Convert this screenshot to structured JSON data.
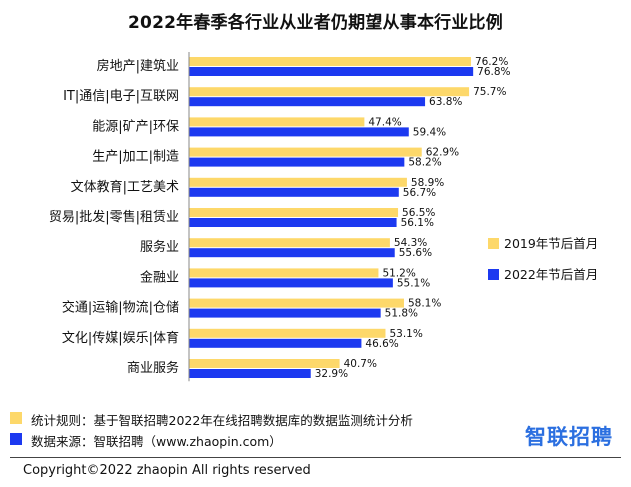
{
  "chart_data": {
    "type": "bar",
    "orientation": "horizontal",
    "title": "2022年春季各行业从业者仍期望从事本行业比例",
    "categories": [
      "房地产|建筑业",
      "IT|通信|电子|互联网",
      "能源|矿产|环保",
      "生产|加工|制造",
      "文体教育|工艺美术",
      "贸易|批发|零售|租赁业",
      "服务业",
      "金融业",
      "交通|运输|物流|仓储",
      "文化|传媒|娱乐|体育",
      "商业服务"
    ],
    "series": [
      {
        "name": "2019年节后首月",
        "color": "#FDD86A",
        "values": [
          76.2,
          75.7,
          47.4,
          62.9,
          58.9,
          56.5,
          54.3,
          51.2,
          58.1,
          53.1,
          40.7
        ]
      },
      {
        "name": "2022年节后首月",
        "color": "#1C39F0",
        "values": [
          76.8,
          63.8,
          59.4,
          58.2,
          56.7,
          56.1,
          55.6,
          55.1,
          51.8,
          46.6,
          32.9
        ]
      }
    ],
    "value_suffix": "%",
    "xlim": [
      0,
      80
    ],
    "legend_position": "right",
    "grid": false
  },
  "footnotes": {
    "rule": "统计规则：基于智联招聘2022年在线招聘数据库的数据监测统计分析",
    "source": "数据来源：智联招聘（www.zhaopin.com）",
    "rule_color": "#FDD86A",
    "source_color": "#1C39F0"
  },
  "brand": "智联招聘",
  "copyright": "Copyright©2022 zhaopin All rights reserved"
}
